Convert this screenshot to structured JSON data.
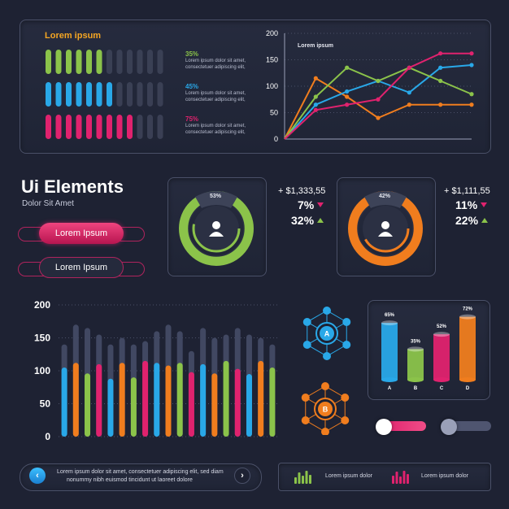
{
  "top_panel": {
    "title": "Lorem ipsum",
    "rows": [
      {
        "percent": "35%",
        "text1": "Lorem ipsum dolor sit amet,",
        "text2": "consectetuer adipiscing elit,",
        "color": "#8bc34a",
        "filled": 6,
        "total": 12
      },
      {
        "percent": "45%",
        "text1": "Lorem ipsum dolor sit amet,",
        "text2": "consectetuer adipiscing elit,",
        "color": "#29a8e8",
        "filled": 7,
        "total": 12
      },
      {
        "percent": "75%",
        "text1": "Lorem ipsum dolor sit amet,",
        "text2": "consectetuer adipiscing elit,",
        "color": "#e0226e",
        "filled": 9,
        "total": 12
      }
    ]
  },
  "line_chart": {
    "legend": "Lorem ipsum",
    "y_ticks": [
      "200",
      "150",
      "100",
      "50",
      "0"
    ]
  },
  "chart_data": [
    {
      "type": "line",
      "title": "",
      "ylim": [
        0,
        200
      ],
      "y_ticks": [
        0,
        50,
        100,
        150,
        200
      ],
      "x": [
        0,
        1,
        2,
        3,
        4,
        5,
        6
      ],
      "series": [
        {
          "color": "#f07d1e",
          "values": [
            0,
            115,
            80,
            40,
            65,
            65,
            65
          ]
        },
        {
          "color": "#29a8e8",
          "values": [
            0,
            65,
            90,
            110,
            88,
            135,
            140
          ]
        },
        {
          "color": "#8bc34a",
          "values": [
            0,
            80,
            135,
            110,
            135,
            110,
            85
          ]
        },
        {
          "color": "#e0226e",
          "values": [
            0,
            55,
            65,
            75,
            135,
            162,
            162
          ]
        }
      ]
    },
    {
      "type": "bar",
      "title": "",
      "ylim": [
        0,
        200
      ],
      "y_ticks": [
        0,
        50,
        100,
        150,
        200
      ],
      "values": [
        105,
        112,
        96,
        110,
        88,
        112,
        90,
        115,
        112,
        108,
        112,
        98,
        110,
        96,
        115,
        103,
        95,
        115,
        105
      ],
      "maxvals": [
        140,
        170,
        165,
        155,
        140,
        150,
        140,
        145,
        160,
        170,
        160,
        130,
        165,
        150,
        155,
        165,
        155,
        150,
        140
      ],
      "colors": [
        "#29a8e8",
        "#f07d1e",
        "#8bc34a",
        "#e0226e",
        "#29a8e8",
        "#f07d1e",
        "#8bc34a",
        "#e0226e",
        "#29a8e8",
        "#f07d1e",
        "#8bc34a",
        "#e0226e",
        "#29a8e8",
        "#f07d1e",
        "#8bc34a",
        "#e0226e",
        "#29a8e8",
        "#f07d1e",
        "#8bc34a"
      ]
    },
    {
      "type": "bar",
      "title": "",
      "categories": [
        "A",
        "B",
        "C",
        "D"
      ],
      "values": [
        65,
        35,
        52,
        72
      ],
      "labels": [
        "65%",
        "35%",
        "52%",
        "72%"
      ],
      "colors": [
        "#29a8e8",
        "#8bc34a",
        "#e0226e",
        "#f07d1e"
      ]
    }
  ],
  "heading": {
    "title": "Ui Elements",
    "subtitle": "Dolor Sit Amet"
  },
  "buttons": {
    "primary": "Lorem Ipsum",
    "secondary": "Lorem Ipsum"
  },
  "donuts": [
    {
      "percent_label": "53%",
      "value": 53,
      "color": "#8bc34a",
      "amount": "+ $1,333,55",
      "stat1": "7%",
      "stat1_dir": "down",
      "stat2": "32%",
      "stat2_dir": "up"
    },
    {
      "percent_label": "42%",
      "value": 42,
      "color": "#f07d1e",
      "amount": "+ $1,111,55",
      "stat1": "11%",
      "stat1_dir": "down",
      "stat2": "22%",
      "stat2_dir": "up"
    }
  ],
  "big_bar": {
    "y_ticks": [
      "200",
      "150",
      "100",
      "50",
      "0"
    ]
  },
  "networks": [
    {
      "label": "A",
      "color": "#29a8e8"
    },
    {
      "label": "B",
      "color": "#f07d1e"
    }
  ],
  "small_bar": {
    "x_labels": [
      "A",
      "B",
      "C",
      "D"
    ],
    "top_labels": [
      "65%",
      "35%",
      "52%",
      "72%"
    ]
  },
  "toggles": [
    {
      "state": "on",
      "color": "#e0226e"
    },
    {
      "state": "off",
      "color": "#8a90a8"
    }
  ],
  "footer": {
    "text1": "Lorem ipsum dolor sit amet, consectetuer adipiscing elit, sed diam",
    "text2": "nonummy nibh euismod tincidunt ut laoreet dolore",
    "legend1": "Lorem ipsum dolor",
    "legend2": "Lorem ipsum dolor"
  },
  "colors": {
    "green": "#8bc34a",
    "blue": "#29a8e8",
    "pink": "#e0226e",
    "orange": "#f07d1e",
    "bg": "#1e2233"
  }
}
